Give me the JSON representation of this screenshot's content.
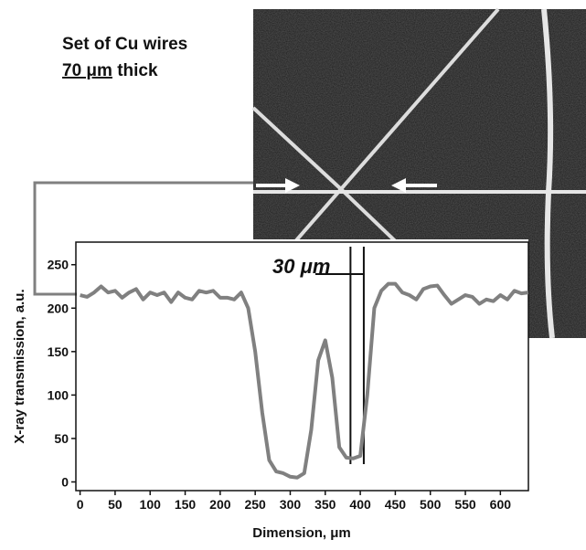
{
  "chart_data": {
    "type": "line",
    "header_line1": "Set of Cu wires",
    "header_thickness": "70 μm",
    "header_suffix": " thick",
    "annotation": "30 μm",
    "annotation_lines": [
      386,
      405
    ],
    "xlabel": "Dimension, μm",
    "ylabel": "X-ray transmission, a.u.",
    "xlim": [
      -6,
      640
    ],
    "ylim": [
      -10,
      276
    ],
    "xticks": [
      0,
      50,
      100,
      150,
      200,
      250,
      300,
      350,
      400,
      450,
      500,
      550,
      600
    ],
    "yticks": [
      0,
      50,
      100,
      150,
      200,
      250
    ],
    "x": [
      0,
      10,
      20,
      30,
      40,
      50,
      60,
      70,
      80,
      90,
      100,
      110,
      120,
      130,
      140,
      150,
      160,
      170,
      180,
      190,
      200,
      210,
      220,
      230,
      240,
      250,
      260,
      270,
      280,
      290,
      300,
      310,
      320,
      330,
      340,
      350,
      360,
      370,
      380,
      390,
      400,
      410,
      420,
      430,
      440,
      450,
      460,
      470,
      480,
      490,
      500,
      510,
      520,
      530,
      540,
      550,
      560,
      570,
      580,
      590,
      600,
      610,
      620,
      630,
      640
    ],
    "series": [
      {
        "color": "#808080",
        "values": [
          215,
          213,
          218,
          225,
          218,
          220,
          212,
          218,
          222,
          210,
          218,
          215,
          218,
          207,
          218,
          212,
          210,
          220,
          218,
          220,
          212,
          212,
          210,
          218,
          200,
          150,
          80,
          25,
          12,
          10,
          6,
          5,
          10,
          60,
          140,
          163,
          120,
          40,
          28,
          27,
          30,
          100,
          200,
          220,
          228,
          228,
          218,
          215,
          210,
          222,
          225,
          226,
          215,
          205,
          210,
          215,
          213,
          205,
          210,
          208,
          215,
          210,
          220,
          217,
          218
        ]
      }
    ]
  }
}
